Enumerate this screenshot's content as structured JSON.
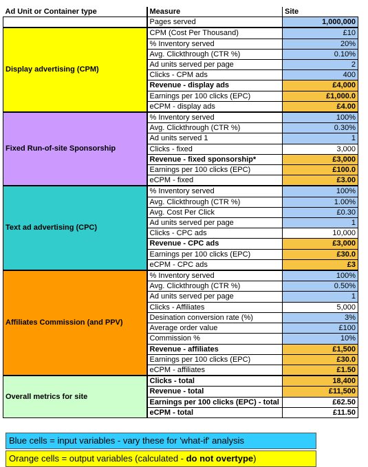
{
  "headers": {
    "group": "Ad Unit or Container type",
    "measure": "Measure",
    "site": "Site"
  },
  "pages_served": {
    "label": "Pages served",
    "value": "1,000,000"
  },
  "groups": [
    {
      "name": "Display advertising (CPM)",
      "rows": [
        {
          "label": "CPM (Cost Per Thousand)",
          "value": "£10",
          "kind": "inp"
        },
        {
          "label": "% Inventory served",
          "value": "20%",
          "kind": "inp"
        },
        {
          "label": "Avg. Clickthrough (CTR %)",
          "value": "0.10%",
          "kind": "inp"
        },
        {
          "label": "Ad units served per page",
          "value": "2",
          "kind": "inp"
        },
        {
          "label": "Clicks - CPM ads",
          "value": "400",
          "kind": "inp"
        },
        {
          "label": "Revenue - display ads",
          "value": "£4,000",
          "kind": "out",
          "bold": true
        },
        {
          "label": "Earnings per 100 clicks (EPC)",
          "value": "£1,000.0",
          "kind": "out"
        },
        {
          "label": "eCPM - display ads",
          "value": "£4.00",
          "kind": "out"
        }
      ]
    },
    {
      "name": "Fixed Run-of-site Sponsorship",
      "rows": [
        {
          "label": "% Inventory served",
          "value": "100%",
          "kind": "inp"
        },
        {
          "label": "Avg. Clickthrough (CTR %)",
          "value": "0.30%",
          "kind": "inp"
        },
        {
          "label": "Ad units served 1",
          "value": "1",
          "kind": "inp"
        },
        {
          "label": "Clicks - fixed",
          "value": "3,000",
          "kind": "plain"
        },
        {
          "label": "Revenue - fixed sponsorship*",
          "value": "£3,000",
          "kind": "out",
          "bold": true
        },
        {
          "label": "Earnings per 100 clicks (EPC)",
          "value": "£100.0",
          "kind": "out"
        },
        {
          "label": "eCPM - fixed",
          "value": "£3.00",
          "kind": "out"
        }
      ]
    },
    {
      "name": "Text ad advertising (CPC)",
      "rows": [
        {
          "label": "% Inventory served",
          "value": "100%",
          "kind": "inp"
        },
        {
          "label": "Avg. Clickthrough (CTR %)",
          "value": "1.00%",
          "kind": "inp"
        },
        {
          "label": "Avg. Cost Per Click",
          "value": "£0.30",
          "kind": "inp"
        },
        {
          "label": "Ad units served per page",
          "value": "1",
          "kind": "inp"
        },
        {
          "label": "Clicks - CPC ads",
          "value": "10,000",
          "kind": "plain"
        },
        {
          "label": "Revenue - CPC ads",
          "value": "£3,000",
          "kind": "out",
          "bold": true
        },
        {
          "label": "Earnings per 100 clicks (EPC)",
          "value": "£30.0",
          "kind": "out"
        },
        {
          "label": "eCPM - CPC ads",
          "value": "£3",
          "kind": "out"
        }
      ]
    },
    {
      "name": "Affiliates Commission (and PPV)",
      "rows": [
        {
          "label": "% Inventory served",
          "value": "100%",
          "kind": "inp"
        },
        {
          "label": "Avg. Clickthrough (CTR %)",
          "value": "0.50%",
          "kind": "inp"
        },
        {
          "label": "Ad units served per page",
          "value": "1",
          "kind": "inp"
        },
        {
          "label": "Clicks - Affiliates",
          "value": "5,000",
          "kind": "plain"
        },
        {
          "label": "Desination conversion rate (%)",
          "value": "3%",
          "kind": "inp"
        },
        {
          "label": "Average order value",
          "value": "£100",
          "kind": "inp"
        },
        {
          "label": "Commission %",
          "value": "10%",
          "kind": "inp"
        },
        {
          "label": "Revenue - affiliates",
          "value": "£1,500",
          "kind": "out",
          "bold": true
        },
        {
          "label": "Earnings per 100 clicks (EPC)",
          "value": "£30.0",
          "kind": "out"
        },
        {
          "label": "eCPM - affiliates",
          "value": "£1.50",
          "kind": "out"
        }
      ]
    },
    {
      "name": "Overall metrics for site",
      "rows": [
        {
          "label": "Clicks - total",
          "value": "18,400",
          "kind": "out",
          "bold": true
        },
        {
          "label": "Revenue - total",
          "value": "£11,500",
          "kind": "out",
          "bold": true
        },
        {
          "label": "Earnings per 100 clicks (EPC) - total",
          "value": "£62.50",
          "kind": "plain",
          "bold": true
        },
        {
          "label": "eCPM - total",
          "value": "£11.50",
          "kind": "plain",
          "bold": true
        }
      ]
    }
  ],
  "legend": {
    "blue": "Blue cells = input variables - vary these for 'what-if' analysis",
    "orange_prefix": "Orange cells  = output variables (calculated - ",
    "orange_bold": "do not overtype",
    "orange_suffix": ")"
  },
  "colors": {
    "input": "#a8ccf4",
    "output": "#f6c442",
    "display": "#ffff00",
    "fixed": "#cc99ff",
    "text": "#33cccc",
    "affiliates": "#ff9900",
    "overall": "#ccffcc"
  }
}
